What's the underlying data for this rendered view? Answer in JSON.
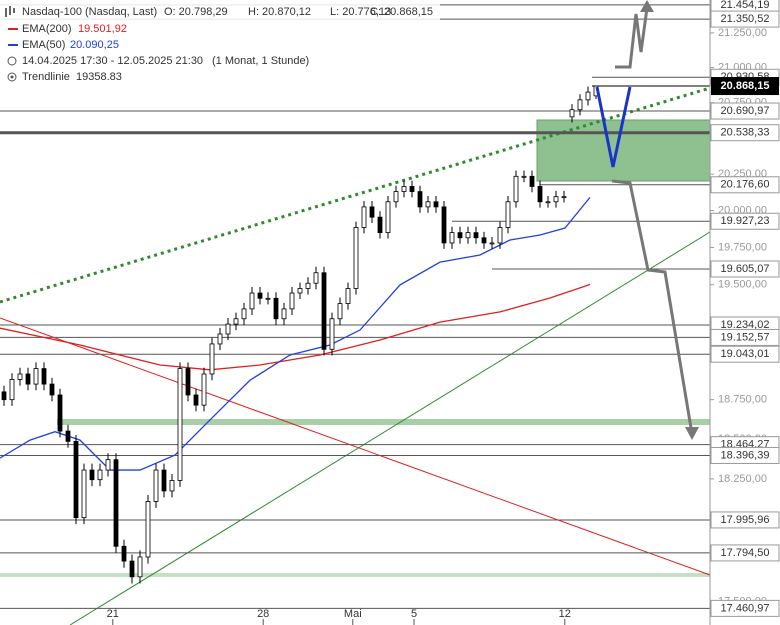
{
  "chart_data": {
    "type": "candlestick",
    "legend": {
      "title": "Nasdaq-100 (Nasdaq, Last)",
      "open": "O: 20.798,29",
      "high": "H: 20.870,12",
      "low": "L: 20.776,13",
      "close": "C: 20.868,15",
      "ema200": "EMA(200)",
      "ema200_value": "19.501,92",
      "ema50": "EMA(50)",
      "ema50_value": "20.090,25",
      "range": "14.04.2025 17:30 - 12.05.2025 21:30",
      "period": "(1 Monat, 1 Stunde)",
      "trend": "Trendlinie",
      "trend_value": "19358.83"
    },
    "log_scale": true,
    "grid": false,
    "xlim": [
      0,
      88.75
    ],
    "ylim": [
      17380,
      21490
    ],
    "xticks": [
      {
        "value": 14.1,
        "label": "21"
      },
      {
        "value": 32.9,
        "label": "28"
      },
      {
        "value": 44.1,
        "label": "Mai"
      },
      {
        "value": 51.75,
        "label": "5"
      },
      {
        "value": 70.6,
        "label": "12"
      }
    ],
    "yticks": [
      {
        "value": 17500,
        "label": "17.500,00"
      },
      {
        "value": 18250,
        "label": "18.250,00"
      },
      {
        "value": 18500,
        "label": "18.500,00"
      },
      {
        "value": 18750,
        "label": "18.750,00"
      },
      {
        "value": 19500,
        "label": "19.500,00"
      },
      {
        "value": 19750,
        "label": "19.750,00"
      },
      {
        "value": 20000,
        "label": "20.000,00"
      },
      {
        "value": 20250,
        "label": "20.250,00"
      },
      {
        "value": 20750,
        "label": "20.750,00"
      },
      {
        "value": 21000,
        "label": "21.000,00"
      },
      {
        "value": 21250,
        "label": "21.250,00"
      }
    ],
    "x": [
      0.5,
      1.5,
      2.5,
      3.5,
      4.5,
      5.5,
      6.5,
      7.5,
      8.5,
      9.5,
      10.5,
      11.5,
      12.5,
      13.5,
      14.5,
      15.5,
      16.5,
      17.5,
      18.5,
      19.5,
      20.5,
      21.5,
      22.5,
      23.5,
      24.5,
      25.5,
      26.5,
      27.5,
      28.5,
      29.5,
      30.5,
      31.5,
      32.5,
      33.5,
      34.5,
      35.5,
      36.5,
      37.5,
      38.5,
      39.5,
      40.5,
      41.5,
      42.5,
      43.5,
      44.5,
      45.5,
      46.5,
      47.5,
      48.5,
      49.5,
      50.5,
      51.5,
      52.5,
      53.5,
      54.5,
      55.5,
      56.5,
      57.5,
      58.5,
      59.5,
      60.5,
      61.5,
      62.5,
      63.5,
      64.5,
      65.5,
      66.5,
      67.5,
      68.5,
      69.5,
      70.5,
      71.5,
      72.5,
      73.5,
      74.5
    ],
    "open": [
      18800,
      18750,
      18880,
      18915,
      18850,
      18950,
      18850,
      18780,
      18550,
      18485,
      18010,
      18305,
      18245,
      18305,
      18370,
      17835,
      17745,
      17650,
      17770,
      18110,
      18305,
      18175,
      18240,
      18950,
      18780,
      18715,
      18915,
      19110,
      19175,
      19240,
      19275,
      19340,
      19445,
      19410,
      19410,
      19275,
      19340,
      19445,
      19475,
      19510,
      19580,
      19075,
      19275,
      19375,
      19475,
      19885,
      20025,
      19955,
      19850,
      20060,
      20130,
      20165,
      20130,
      20025,
      20060,
      20025,
      19780,
      19850,
      19815,
      19850,
      19815,
      19780,
      19780,
      19885,
      20060,
      20235,
      20235,
      20165,
      20060,
      20060,
      20095,
      20650,
      20700,
      20770,
      20798.29
    ],
    "high": [
      18840,
      18920,
      18955,
      18955,
      18990,
      18990,
      18890,
      18820,
      18590,
      18525,
      18345,
      18345,
      18345,
      18410,
      18410,
      17875,
      17785,
      17810,
      18150,
      18345,
      18345,
      18280,
      18990,
      18990,
      18820,
      18955,
      19150,
      19215,
      19280,
      19315,
      19380,
      19485,
      19485,
      19450,
      19450,
      19380,
      19485,
      19515,
      19550,
      19620,
      19620,
      19315,
      19415,
      19515,
      19925,
      20065,
      20065,
      19995,
      20100,
      20170,
      20205,
      20205,
      20170,
      20100,
      20100,
      20065,
      19890,
      19890,
      19890,
      19890,
      19855,
      19820,
      19925,
      20100,
      20275,
      20275,
      20275,
      20205,
      20100,
      20135,
      20135,
      20740,
      20810,
      20865,
      20870.12
    ],
    "low": [
      18710,
      18710,
      18840,
      18810,
      18810,
      18810,
      18740,
      18510,
      18445,
      17970,
      17970,
      18205,
      18205,
      18265,
      17795,
      17705,
      17610,
      17610,
      17730,
      18070,
      18135,
      18135,
      18200,
      18740,
      18675,
      18675,
      18875,
      19070,
      19135,
      19200,
      19235,
      19300,
      19370,
      19370,
      19235,
      19235,
      19300,
      19405,
      19435,
      19470,
      19035,
      19035,
      19235,
      19335,
      19435,
      19845,
      19915,
      19810,
      19810,
      20020,
      20090,
      20090,
      19985,
      19985,
      19985,
      19740,
      19740,
      19775,
      19775,
      19775,
      19740,
      19740,
      19740,
      19845,
      20020,
      20195,
      20125,
      20020,
      20020,
      20020,
      20055,
      20610,
      20660,
      20730,
      20776.13
    ],
    "close": [
      18750,
      18880,
      18915,
      18850,
      18950,
      18850,
      18780,
      18550,
      18485,
      18010,
      18305,
      18245,
      18305,
      18370,
      17835,
      17745,
      17650,
      17770,
      18110,
      18305,
      18175,
      18240,
      18950,
      18780,
      18715,
      18915,
      19110,
      19175,
      19240,
      19275,
      19340,
      19445,
      19410,
      19410,
      19275,
      19340,
      19445,
      19475,
      19510,
      19580,
      19075,
      19275,
      19375,
      19475,
      19885,
      20025,
      19955,
      19850,
      20060,
      20130,
      20165,
      20130,
      20025,
      20060,
      20025,
      19780,
      19850,
      19815,
      19850,
      19815,
      19780,
      19780,
      19885,
      20060,
      20235,
      20235,
      20165,
      20060,
      20060,
      20095,
      20095,
      20700,
      20770,
      20825,
      20868.15
    ],
    "lines": [
      {
        "name": "EMA(200)",
        "color": "#e02020",
        "x": [
          0,
          10,
          20,
          26.25,
          32.5,
          40,
          47.5,
          55,
          62.5,
          68.75,
          73.75
        ],
        "values": [
          19213,
          19103,
          18973,
          18942,
          18973,
          19038,
          19136,
          19253,
          19320,
          19412,
          19501.92
        ]
      },
      {
        "name": "EMA(50)",
        "color": "#2040e0",
        "x": [
          0,
          3.75,
          6.875,
          10,
          13.75,
          17.5,
          21.875,
          26.25,
          31.25,
          36.25,
          41.25,
          45,
          50,
          55,
          60,
          63.75,
          67.5,
          70.625,
          73.75
        ],
        "values": [
          18380,
          18493,
          18546,
          18493,
          18305,
          18305,
          18399,
          18621,
          18875,
          19038,
          19103,
          19201,
          19499,
          19651,
          19699,
          19800,
          19834,
          19881,
          20090.25
        ]
      }
    ],
    "levels": [
      {
        "value": 21454.19,
        "label": "21.454,19"
      },
      {
        "value": 21350.52,
        "label": "21.350,52"
      },
      {
        "value": 20930.58,
        "label": "20.930,58"
      },
      {
        "value": 20690.97,
        "label": "20.690,97"
      },
      {
        "value": 20538.33,
        "label": "20.538,33"
      },
      {
        "value": 20176.6,
        "label": "20.176,60"
      },
      {
        "value": 19927.23,
        "label": "19.927,23"
      },
      {
        "value": 19605.07,
        "label": "19.605,07"
      },
      {
        "value": 19234.02,
        "label": "19.234,02"
      },
      {
        "value": 19152.57,
        "label": "19.152,57"
      },
      {
        "value": 19043.01,
        "label": "19.043,01"
      },
      {
        "value": 18464.27,
        "label": "18.464,27"
      },
      {
        "value": 18396.39,
        "label": "18.396,39"
      },
      {
        "value": 17995.96,
        "label": "17.995,96"
      },
      {
        "value": 17794.5,
        "label": "17.794,50"
      },
      {
        "value": 17460.97,
        "label": "17.460,97"
      }
    ],
    "last_price": {
      "value": 20868.15,
      "label": "20.868,15"
    }
  }
}
